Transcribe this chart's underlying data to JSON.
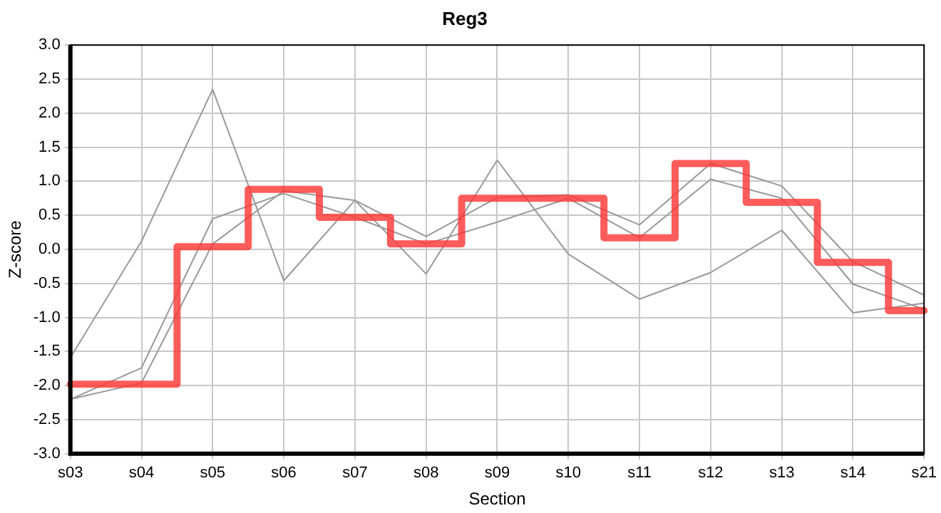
{
  "chart_data": {
    "type": "line",
    "title": "Reg3",
    "xlabel": "Section",
    "ylabel": "Z-score",
    "categories": [
      "s03",
      "s04",
      "s05",
      "s06",
      "s07",
      "s08",
      "s09",
      "s10",
      "s11",
      "s12",
      "s13",
      "s14",
      "s21"
    ],
    "series": [
      {
        "color": "#999999",
        "values": [
          -1.59,
          0.12,
          2.35,
          -0.46,
          0.72,
          -0.36,
          1.31,
          -0.07,
          -0.73,
          -0.34,
          0.28,
          -0.93,
          -0.79
        ]
      },
      {
        "color": "#999999",
        "values": [
          -2.2,
          -1.74,
          0.45,
          0.82,
          0.47,
          0.08,
          0.4,
          0.75,
          0.17,
          1.03,
          0.75,
          -0.51,
          -0.88
        ]
      },
      {
        "color": "#999999",
        "values": [
          -2.2,
          -1.96,
          0.08,
          0.86,
          0.72,
          0.19,
          0.76,
          0.8,
          0.36,
          1.26,
          0.93,
          -0.18,
          -0.67
        ]
      },
      {
        "type": "step",
        "color": "#ff3333",
        "values": [
          -1.98,
          -1.98,
          0.04,
          0.88,
          0.47,
          0.08,
          0.75,
          0.75,
          0.17,
          1.26,
          0.69,
          -0.19,
          -0.9
        ]
      }
    ],
    "ylim": [
      -3,
      3
    ],
    "yticks": [
      {
        "value": -3,
        "label": "-3.0"
      },
      {
        "value": -2.5,
        "label": "-2.5"
      },
      {
        "value": -2,
        "label": "-2.0"
      },
      {
        "value": -1.5,
        "label": "-1.5"
      },
      {
        "value": -1,
        "label": "-1.0"
      },
      {
        "value": -0.5,
        "label": "-0.5"
      },
      {
        "value": 0,
        "label": "0.0"
      },
      {
        "value": 0.5,
        "label": "0.5"
      },
      {
        "value": 1,
        "label": "1.0"
      },
      {
        "value": 1.5,
        "label": "1.5"
      },
      {
        "value": 2,
        "label": "2.0"
      },
      {
        "value": 2.5,
        "label": "2.5"
      },
      {
        "value": 3,
        "label": "3.0"
      }
    ],
    "grid": true,
    "legend": false,
    "marker": "none",
    "line_style": "solid"
  }
}
